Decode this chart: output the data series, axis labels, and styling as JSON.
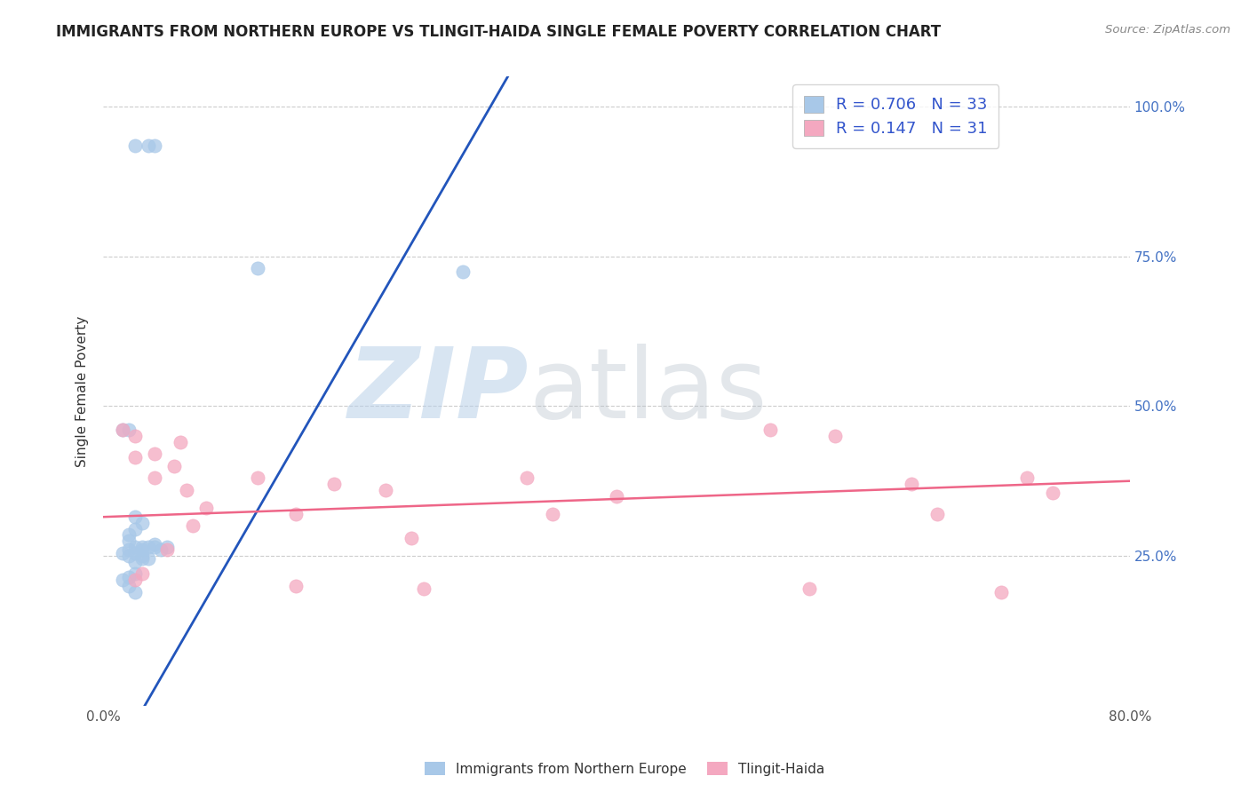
{
  "title": "IMMIGRANTS FROM NORTHERN EUROPE VS TLINGIT-HAIDA SINGLE FEMALE POVERTY CORRELATION CHART",
  "source_text": "Source: ZipAtlas.com",
  "ylabel": "Single Female Poverty",
  "legend_label1": "Immigrants from Northern Europe",
  "legend_label2": "Tlingit-Haida",
  "R1": "0.706",
  "N1": "33",
  "R2": "0.147",
  "N2": "31",
  "color_blue": "#A8C8E8",
  "color_pink": "#F4A8C0",
  "line_blue": "#2255BB",
  "line_pink": "#EE6688",
  "title_color": "#333333",
  "blue_scatter_x": [
    0.025,
    0.035,
    0.04,
    0.12,
    0.28,
    0.015,
    0.02,
    0.025,
    0.03,
    0.025,
    0.02,
    0.02,
    0.03,
    0.04,
    0.045,
    0.05,
    0.03,
    0.025,
    0.02,
    0.015,
    0.02,
    0.03,
    0.035,
    0.025,
    0.04,
    0.025,
    0.02,
    0.015,
    0.02,
    0.025,
    0.035,
    0.025,
    0.03
  ],
  "blue_scatter_y": [
    0.935,
    0.935,
    0.935,
    0.73,
    0.725,
    0.46,
    0.46,
    0.315,
    0.305,
    0.295,
    0.285,
    0.275,
    0.265,
    0.27,
    0.26,
    0.265,
    0.26,
    0.265,
    0.26,
    0.255,
    0.25,
    0.25,
    0.245,
    0.24,
    0.265,
    0.22,
    0.215,
    0.21,
    0.2,
    0.19,
    0.265,
    0.255,
    0.245
  ],
  "pink_scatter_x": [
    0.015,
    0.025,
    0.04,
    0.06,
    0.025,
    0.04,
    0.055,
    0.065,
    0.08,
    0.12,
    0.15,
    0.18,
    0.22,
    0.24,
    0.33,
    0.35,
    0.52,
    0.57,
    0.63,
    0.65,
    0.72,
    0.74,
    0.025,
    0.03,
    0.05,
    0.07,
    0.15,
    0.25,
    0.55,
    0.7,
    0.4
  ],
  "pink_scatter_y": [
    0.46,
    0.45,
    0.42,
    0.44,
    0.415,
    0.38,
    0.4,
    0.36,
    0.33,
    0.38,
    0.32,
    0.37,
    0.36,
    0.28,
    0.38,
    0.32,
    0.46,
    0.45,
    0.37,
    0.32,
    0.38,
    0.355,
    0.21,
    0.22,
    0.26,
    0.3,
    0.2,
    0.195,
    0.195,
    0.19,
    0.35
  ],
  "blue_line_x": [
    0.0,
    0.8
  ],
  "blue_line_y": [
    -0.12,
    2.85
  ],
  "pink_line_x": [
    0.0,
    0.8
  ],
  "pink_line_y": [
    0.315,
    0.375
  ],
  "xlim": [
    0.0,
    0.8
  ],
  "ylim": [
    0.0,
    1.05
  ],
  "yticks": [
    0.25,
    0.5,
    0.75,
    1.0
  ],
  "ytick_labels": [
    "25.0%",
    "50.0%",
    "75.0%",
    "100.0%"
  ],
  "xticks": [
    0.0,
    0.8
  ],
  "xtick_labels": [
    "0.0%",
    "80.0%"
  ],
  "grid_color": "#CCCCCC",
  "scatter_size": 120
}
